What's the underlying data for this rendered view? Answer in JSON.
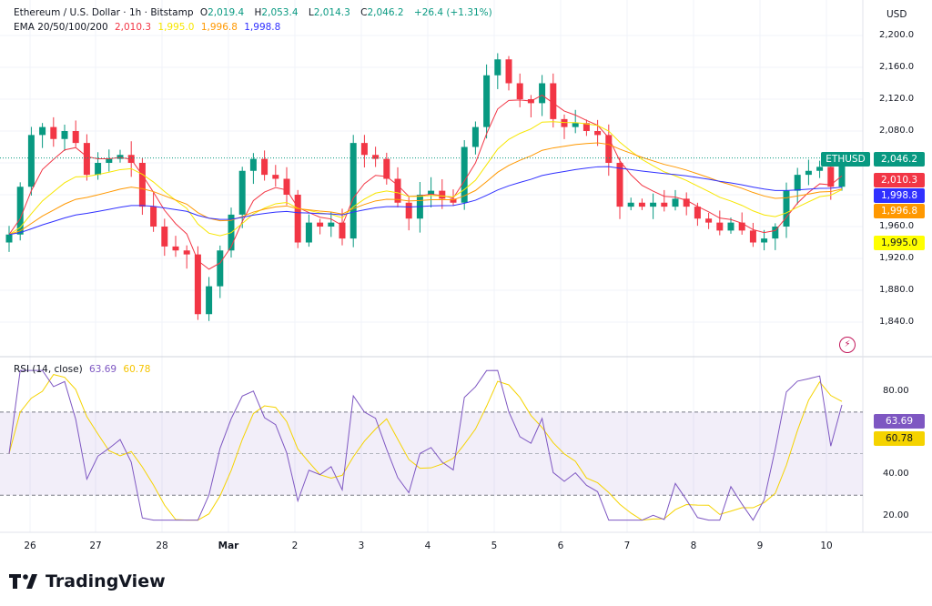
{
  "header": {
    "symbol_title": "Ethereum / U.S. Dollar · 1h · Bitstamp",
    "ohlc": {
      "o_label": "O",
      "o": "2,019.4",
      "h_label": "H",
      "h": "2,053.4",
      "l_label": "L",
      "l": "2,014.3",
      "c_label": "C",
      "c": "2,046.2",
      "change": "+26.4 (+1.31%)"
    },
    "ema_label": "EMA 20/50/100/200",
    "ema_values": {
      "ema20": "2,010.3",
      "ema50": "1,995.0",
      "ema100": "1,996.8",
      "ema200": "1,998.8"
    }
  },
  "price_axis": {
    "currency": "USD",
    "ticks": [
      "2,200.0",
      "2,160.0",
      "2,120.0",
      "2,080.0",
      "1,960.0",
      "1,920.0",
      "1,880.0",
      "1,840.0"
    ],
    "tick_values": [
      2200,
      2160,
      2120,
      2080,
      1960,
      1920,
      1880,
      1840
    ],
    "symbol_tag": "ETHUSD",
    "last_price": "2,046.2",
    "ema_tags": [
      "2,010.3",
      "1,998.8",
      "1,996.8",
      "1,995.0"
    ]
  },
  "rsi_pane": {
    "label": "RSI (14, close)",
    "rsi_value": "63.69",
    "ma_value": "60.78",
    "ticks": [
      "80.00",
      "40.00",
      "20.00"
    ],
    "tick_values": [
      80,
      40,
      20
    ],
    "upper_band": 70,
    "lower_band": 30
  },
  "time_axis": {
    "labels": [
      "26",
      "27",
      "28",
      "Mar",
      "2",
      "3",
      "4",
      "5",
      "6",
      "7",
      "8",
      "9",
      "10"
    ]
  },
  "colors": {
    "up": "#089981",
    "down": "#f23645",
    "ema20": "#f23645",
    "ema50": "#f7e600",
    "ema100": "#ff9800",
    "ema200": "#3030ff",
    "rsi": "#7e57c2",
    "rsi_ma": "#f5d300"
  },
  "chart_data": {
    "type": "candlestick",
    "price_range": [
      1820,
      2210
    ],
    "closes": [
      1950,
      2010,
      2075,
      2085,
      2070,
      2080,
      2065,
      2025,
      2040,
      2045,
      2050,
      2040,
      1985,
      1960,
      1935,
      1930,
      1925,
      1850,
      1885,
      1930,
      1975,
      2030,
      2045,
      2025,
      2020,
      2000,
      1940,
      1965,
      1960,
      1965,
      1945,
      2065,
      2050,
      2045,
      2020,
      1990,
      1970,
      2000,
      2005,
      1995,
      1990,
      2060,
      2085,
      2150,
      2170,
      2140,
      2120,
      2115,
      2140,
      2095,
      2085,
      2090,
      2080,
      2075,
      2040,
      1985,
      1990,
      1985,
      1990,
      1985,
      1995,
      1985,
      1970,
      1965,
      1955,
      1965,
      1955,
      1940,
      1945,
      1960,
      2005,
      2025,
      2030,
      2035,
      2010,
      2046.2
    ]
  },
  "brand": {
    "name": "TradingView"
  }
}
